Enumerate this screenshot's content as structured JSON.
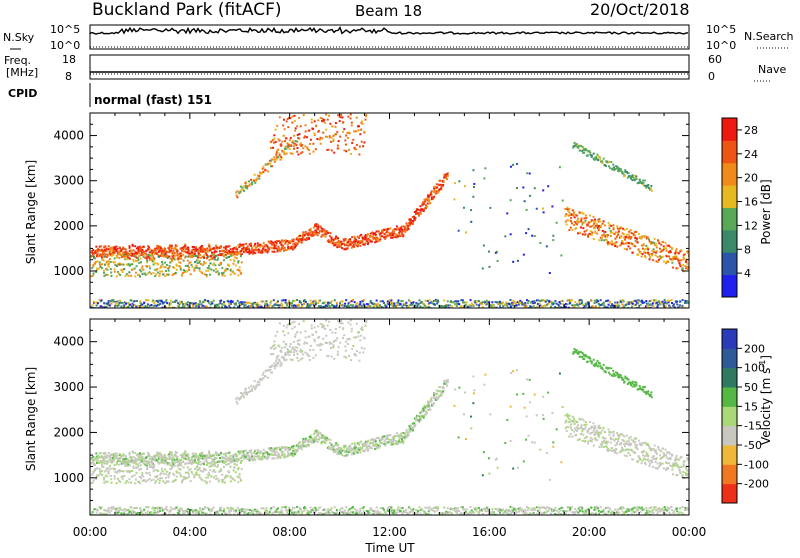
{
  "header": {
    "site": "Buckland Park (fitACF)",
    "beam": "Beam 18",
    "date": "20/Oct/2018"
  },
  "strip_labels": {
    "nsky": "N.Sky",
    "nsky_top": "10^5",
    "nsky_bottom": "10^0",
    "nsearch": "N.Search",
    "nsearch_top": "10^5",
    "nsearch_bottom": "10^0",
    "freq": "Freq.",
    "freq_unit": "[MHz]",
    "freq_top": "18",
    "freq_bottom": "8",
    "nave": "Nave",
    "nave_top": "60",
    "nave_bottom": "0",
    "cpid": "CPID",
    "cpid_text": "normal (fast) 151"
  },
  "chart_data": [
    {
      "type": "heatmap",
      "panel": "power",
      "ylabel": "Slant Range [km]",
      "xlabel": "",
      "x_ticks": [
        "00:00",
        "04:00",
        "08:00",
        "12:00",
        "16:00",
        "20:00",
        "00:00"
      ],
      "xlim_hours": [
        0,
        24
      ],
      "y_ticks": [
        1000,
        2000,
        3000,
        4000
      ],
      "ylim_km": [
        180,
        4500
      ],
      "colorbar": {
        "label": "Power [dB]",
        "ticks": [
          4,
          8,
          12,
          16,
          20,
          24,
          28
        ],
        "range": [
          0,
          30
        ],
        "colors": [
          "#1f1fee",
          "#2a55a8",
          "#3a8a6a",
          "#58a858",
          "#e8b820",
          "#f08a18",
          "#ee5515",
          "#ee1a10"
        ]
      }
    },
    {
      "type": "heatmap",
      "panel": "velocity",
      "ylabel": "Slant Range [km]",
      "xlabel": "Time UT",
      "x_ticks": [
        "00:00",
        "04:00",
        "08:00",
        "12:00",
        "16:00",
        "20:00",
        "00:00"
      ],
      "xlim_hours": [
        0,
        24
      ],
      "y_ticks": [
        1000,
        2000,
        3000,
        4000
      ],
      "ylim_km": [
        180,
        4500
      ],
      "colorbar": {
        "label": "Velocity [m s-1]",
        "label_main": "Velocity [m s",
        "label_sup": "-1",
        "label_end": "]",
        "ticks": [
          "200",
          "100",
          "50",
          "15",
          "-15",
          "-50",
          "-100",
          "-200"
        ],
        "colors": [
          "#2b3ab8",
          "#2f5a9a",
          "#2e7a60",
          "#55b845",
          "#a8d878",
          "#c8c8c0",
          "#f0b838",
          "#f07820",
          "#ee3018"
        ]
      }
    }
  ]
}
